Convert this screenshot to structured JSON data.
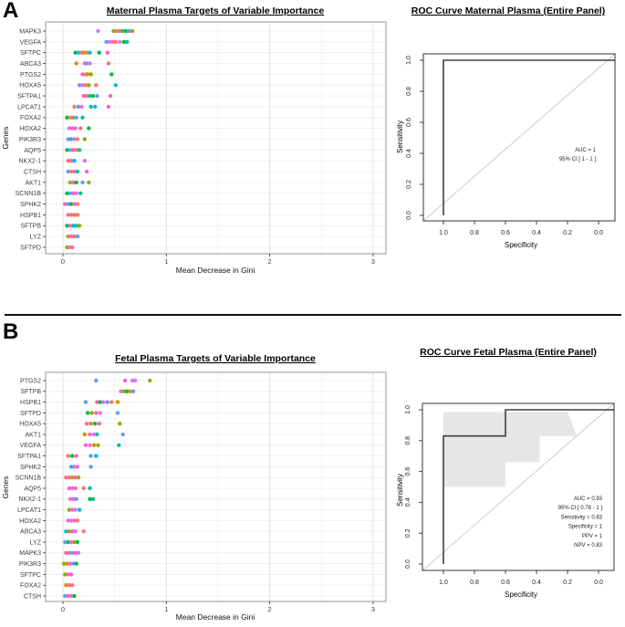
{
  "figure": {
    "panel_a_label": "A",
    "panel_b_label": "B"
  },
  "palette": [
    "#F8766D",
    "#D39200",
    "#93AA00",
    "#00BA38",
    "#00C19F",
    "#00B9E3",
    "#619CFF",
    "#DB72FB",
    "#FF61C3"
  ],
  "chart_data": [
    {
      "id": "dot-a",
      "type": "scatter",
      "subtype": "variable_importance_dotplot",
      "title": "Maternal Plasma Targets of Variable Importance",
      "xlabel": "Mean Decrease in Gini",
      "ylabel": "Genes",
      "xlim": [
        0,
        3
      ],
      "xticks": [
        0,
        1,
        2,
        3
      ],
      "grid": true,
      "series": [
        {
          "gene": "MAPK3",
          "values": [
            0.34,
            0.49,
            0.52,
            0.55,
            0.58,
            0.61,
            0.64,
            0.67
          ],
          "colors": [
            7,
            2,
            8,
            1,
            4,
            3,
            6,
            2
          ]
        },
        {
          "gene": "VEGFA",
          "values": [
            0.42,
            0.45,
            0.48,
            0.51,
            0.55,
            0.59,
            0.62
          ],
          "colors": [
            6,
            7,
            8,
            0,
            7,
            3,
            4
          ]
        },
        {
          "gene": "SFTPC",
          "values": [
            0.12,
            0.15,
            0.18,
            0.2,
            0.23,
            0.26,
            0.35,
            0.43
          ],
          "colors": [
            3,
            5,
            8,
            1,
            0,
            4,
            3,
            8
          ]
        },
        {
          "gene": "ABCA3",
          "values": [
            0.13,
            0.21,
            0.23,
            0.26,
            0.44
          ],
          "colors": [
            1,
            8,
            6,
            7,
            0
          ]
        },
        {
          "gene": "PTGS2",
          "values": [
            0.19,
            0.22,
            0.24,
            0.27,
            0.47
          ],
          "colors": [
            8,
            0,
            1,
            2,
            3
          ]
        },
        {
          "gene": "HOXA5",
          "values": [
            0.16,
            0.19,
            0.22,
            0.25,
            0.32,
            0.51
          ],
          "colors": [
            6,
            7,
            0,
            2,
            0,
            5
          ]
        },
        {
          "gene": "SFTPA1",
          "values": [
            0.2,
            0.23,
            0.26,
            0.29,
            0.33,
            0.46
          ],
          "colors": [
            8,
            0,
            4,
            3,
            6,
            8
          ]
        },
        {
          "gene": "LPCAT1",
          "values": [
            0.11,
            0.15,
            0.18,
            0.27,
            0.31,
            0.44
          ],
          "colors": [
            0,
            6,
            7,
            4,
            5,
            8
          ]
        },
        {
          "gene": "FOXA2",
          "values": [
            0.04,
            0.07,
            0.1,
            0.13,
            0.19
          ],
          "colors": [
            3,
            0,
            2,
            6,
            4
          ]
        },
        {
          "gene": "HOXA2",
          "values": [
            0.06,
            0.09,
            0.12,
            0.17,
            0.25
          ],
          "colors": [
            7,
            8,
            8,
            0,
            3
          ]
        },
        {
          "gene": "PIK3R3",
          "values": [
            0.05,
            0.08,
            0.11,
            0.14,
            0.21
          ],
          "colors": [
            6,
            5,
            8,
            0,
            2
          ]
        },
        {
          "gene": "AQP5",
          "values": [
            0.04,
            0.07,
            0.1,
            0.13,
            0.16
          ],
          "colors": [
            3,
            6,
            8,
            0,
            4
          ]
        },
        {
          "gene": "NKX2-1",
          "values": [
            0.05,
            0.08,
            0.11,
            0.21
          ],
          "colors": [
            0,
            8,
            5,
            7
          ]
        },
        {
          "gene": "CTSH",
          "values": [
            0.05,
            0.08,
            0.11,
            0.14,
            0.23
          ],
          "colors": [
            6,
            0,
            8,
            4,
            8
          ]
        },
        {
          "gene": "AKT1",
          "values": [
            0.07,
            0.1,
            0.13,
            0.19,
            0.25
          ],
          "colors": [
            2,
            8,
            3,
            6,
            2
          ]
        },
        {
          "gene": "SCNN1B",
          "values": [
            0.04,
            0.07,
            0.1,
            0.13,
            0.17
          ],
          "colors": [
            3,
            6,
            8,
            7,
            4
          ]
        },
        {
          "gene": "SPHK2",
          "values": [
            0.02,
            0.05,
            0.08,
            0.11,
            0.14
          ],
          "colors": [
            8,
            6,
            3,
            8,
            0
          ]
        },
        {
          "gene": "HSPB1",
          "values": [
            0.05,
            0.08,
            0.11,
            0.14
          ],
          "colors": [
            0,
            8,
            1,
            0
          ]
        },
        {
          "gene": "SFTPB",
          "values": [
            0.04,
            0.07,
            0.1,
            0.13,
            0.16
          ],
          "colors": [
            3,
            8,
            5,
            4,
            2
          ]
        },
        {
          "gene": "LYZ",
          "values": [
            0.05,
            0.08,
            0.11,
            0.14
          ],
          "colors": [
            1,
            8,
            0,
            6
          ]
        },
        {
          "gene": "SFTPD",
          "values": [
            0.04,
            0.06,
            0.09
          ],
          "colors": [
            2,
            0,
            8
          ]
        }
      ]
    },
    {
      "id": "roc-a",
      "type": "line",
      "subtype": "roc",
      "title": "ROC Curve Maternal Plasma (Entire Panel)",
      "xlabel": "Specificity",
      "ylabel": "Sensitivity",
      "xticks": [
        "1.0",
        "0.8",
        "0.6",
        "0.4",
        "0.2",
        "0.0"
      ],
      "yticks": [
        "0.0",
        "0.2",
        "0.4",
        "0.6",
        "0.8",
        "1.0"
      ],
      "x_axis_reversed": true,
      "diagonal": true,
      "curve": [
        [
          1.0,
          0.0
        ],
        [
          1.0,
          1.0
        ],
        [
          -0.105,
          1.0
        ]
      ],
      "annotation": [
        "AUC = 1",
        "95% CI [ 1 - 1 ]"
      ]
    },
    {
      "id": "dot-b",
      "type": "scatter",
      "subtype": "variable_importance_dotplot",
      "title": "Fetal Plasma Targets of Variable Importance",
      "xlabel": "Mean Decrease in Gini",
      "ylabel": "Genes",
      "xlim": [
        0,
        3
      ],
      "xticks": [
        0,
        1,
        2,
        3
      ],
      "grid": true,
      "series": [
        {
          "gene": "PTGS2",
          "values": [
            0.32,
            0.6,
            0.67,
            0.7,
            0.84
          ],
          "colors": [
            6,
            8,
            7,
            7,
            2
          ]
        },
        {
          "gene": "SFTPB",
          "values": [
            0.56,
            0.59,
            0.62,
            0.65,
            0.68
          ],
          "colors": [
            7,
            2,
            3,
            1,
            6
          ]
        },
        {
          "gene": "HSPB1",
          "values": [
            0.22,
            0.33,
            0.36,
            0.39,
            0.43,
            0.47,
            0.53
          ],
          "colors": [
            6,
            8,
            3,
            7,
            6,
            0,
            1
          ]
        },
        {
          "gene": "SFTPD",
          "values": [
            0.24,
            0.28,
            0.32,
            0.36,
            0.53
          ],
          "colors": [
            3,
            2,
            8,
            7,
            6
          ]
        },
        {
          "gene": "HOXA5",
          "values": [
            0.23,
            0.27,
            0.31,
            0.35,
            0.55
          ],
          "colors": [
            8,
            1,
            3,
            8,
            2
          ]
        },
        {
          "gene": "AKT1",
          "values": [
            0.21,
            0.26,
            0.3,
            0.33,
            0.58
          ],
          "colors": [
            1,
            8,
            7,
            4,
            6
          ]
        },
        {
          "gene": "VEGFA",
          "values": [
            0.22,
            0.26,
            0.3,
            0.34,
            0.54
          ],
          "colors": [
            8,
            7,
            1,
            2,
            4
          ]
        },
        {
          "gene": "SFTPA1",
          "values": [
            0.05,
            0.09,
            0.13,
            0.27,
            0.32
          ],
          "colors": [
            0,
            3,
            8,
            6,
            5
          ]
        },
        {
          "gene": "SPHK2",
          "values": [
            0.08,
            0.11,
            0.14,
            0.27
          ],
          "colors": [
            5,
            8,
            7,
            6
          ]
        },
        {
          "gene": "SCNN1B",
          "values": [
            0.03,
            0.06,
            0.09,
            0.12,
            0.15
          ],
          "colors": [
            0,
            8,
            1,
            8,
            2
          ]
        },
        {
          "gene": "AQP5",
          "values": [
            0.06,
            0.09,
            0.12,
            0.2,
            0.26
          ],
          "colors": [
            8,
            7,
            8,
            0,
            4
          ]
        },
        {
          "gene": "NKX2-1",
          "values": [
            0.07,
            0.1,
            0.13,
            0.26,
            0.29
          ],
          "colors": [
            7,
            8,
            6,
            3,
            4
          ]
        },
        {
          "gene": "LPCAT1",
          "values": [
            0.06,
            0.09,
            0.12,
            0.16
          ],
          "colors": [
            2,
            8,
            7,
            5
          ]
        },
        {
          "gene": "HOXA2",
          "values": [
            0.05,
            0.08,
            0.11,
            0.14
          ],
          "colors": [
            8,
            7,
            8,
            0
          ]
        },
        {
          "gene": "ABCA3",
          "values": [
            0.03,
            0.06,
            0.09,
            0.12,
            0.2
          ],
          "colors": [
            5,
            2,
            8,
            7,
            0
          ]
        },
        {
          "gene": "LYZ",
          "values": [
            0.02,
            0.05,
            0.08,
            0.11,
            0.14
          ],
          "colors": [
            6,
            3,
            8,
            2,
            3
          ]
        },
        {
          "gene": "MAPK3",
          "values": [
            0.03,
            0.06,
            0.09,
            0.12,
            0.15
          ],
          "colors": [
            8,
            0,
            6,
            8,
            7
          ]
        },
        {
          "gene": "PIK3R3",
          "values": [
            0.01,
            0.04,
            0.07,
            0.1,
            0.13
          ],
          "colors": [
            2,
            1,
            8,
            6,
            3
          ]
        },
        {
          "gene": "SFTPC",
          "values": [
            0.02,
            0.05,
            0.08
          ],
          "colors": [
            2,
            8,
            8
          ]
        },
        {
          "gene": "FOXA2",
          "values": [
            0.03,
            0.06,
            0.09
          ],
          "colors": [
            1,
            8,
            0
          ]
        },
        {
          "gene": "CTSH",
          "values": [
            0.02,
            0.05,
            0.08,
            0.11
          ],
          "colors": [
            6,
            8,
            8,
            3
          ]
        }
      ]
    },
    {
      "id": "roc-b",
      "type": "line",
      "subtype": "roc",
      "title": "ROC Curve Fetal Plasma (Entire Panel)",
      "xlabel": "Specificity",
      "ylabel": "Sensitivity",
      "xticks": [
        "1.0",
        "0.8",
        "0.6",
        "0.4",
        "0.2",
        "0.0"
      ],
      "yticks": [
        "0.0",
        "0.2",
        "0.4",
        "0.6",
        "0.8",
        "1.0"
      ],
      "x_axis_reversed": true,
      "diagonal": true,
      "curve": [
        [
          1.0,
          0.0
        ],
        [
          1.0,
          0.83
        ],
        [
          0.6,
          0.83
        ],
        [
          0.6,
          1.0
        ],
        [
          -0.1,
          1.0
        ]
      ],
      "ci_band": [
        [
          1.0,
          0.985
        ],
        [
          0.2,
          0.985
        ],
        [
          0.14,
          0.83
        ],
        [
          0.38,
          0.83
        ],
        [
          0.38,
          0.66
        ],
        [
          0.6,
          0.66
        ],
        [
          0.6,
          0.5
        ],
        [
          1.0,
          0.5
        ]
      ],
      "annotation": [
        "AUC = 0.93",
        "95% CI [ 0.78 - 1 ]",
        "Sensitivity = 0.83",
        "Specificity = 1",
        "PPV = 1",
        "NPV = 0.83"
      ]
    }
  ]
}
